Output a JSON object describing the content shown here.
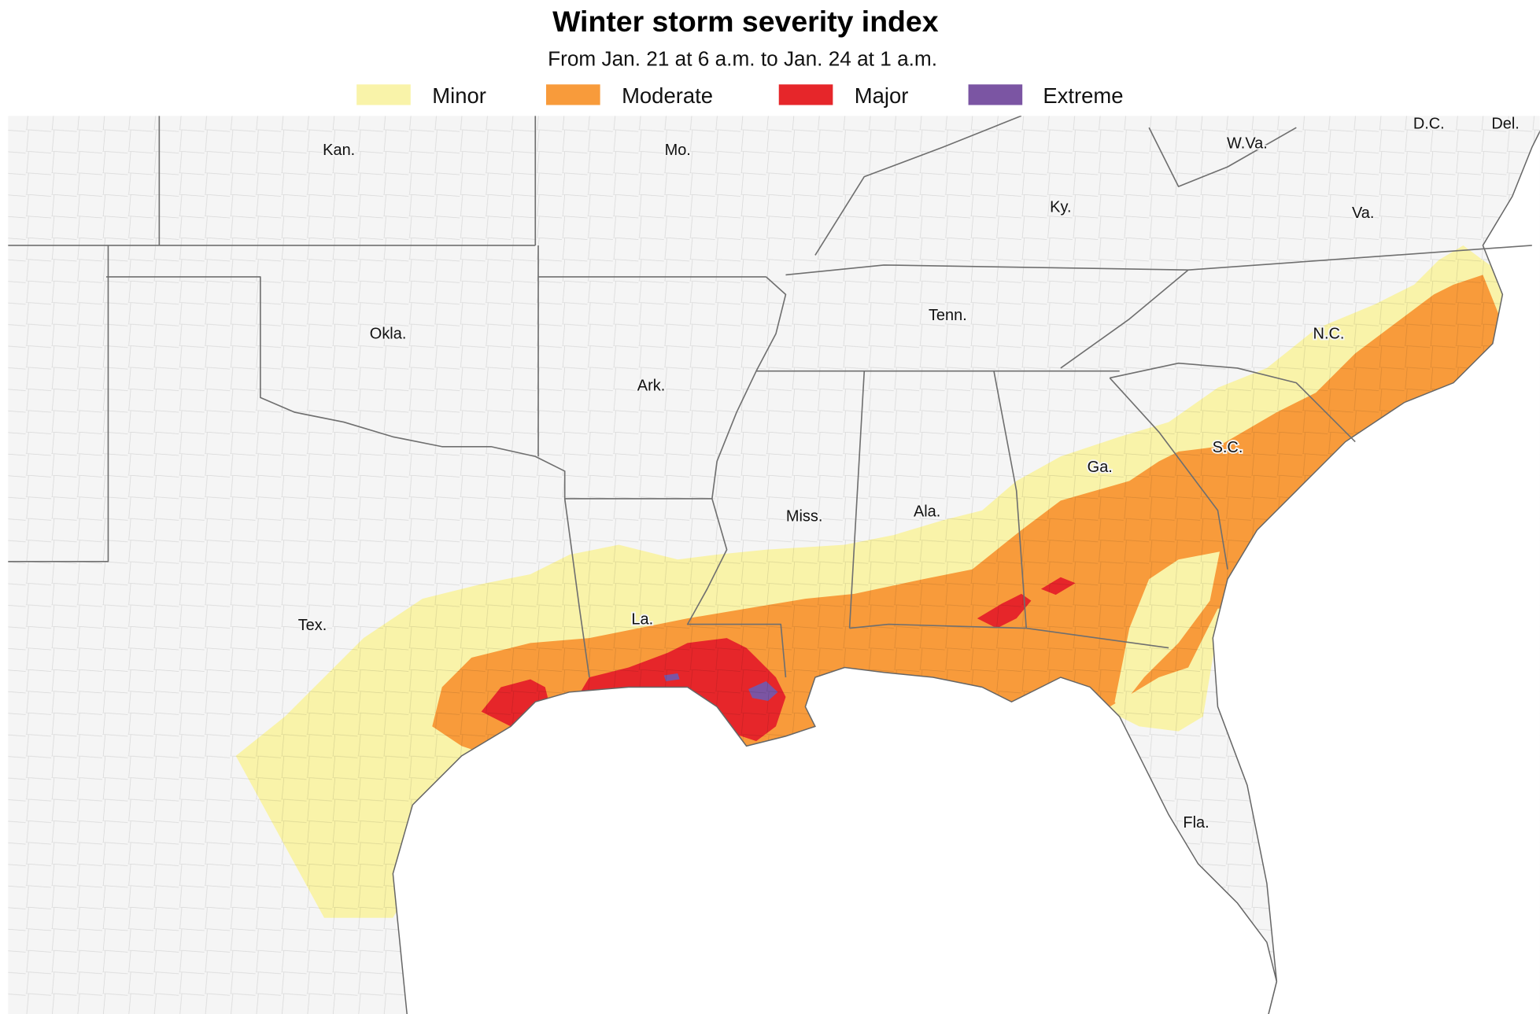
{
  "title": "Winter storm severity index",
  "subtitle": "From Jan. 21 at 6 a.m. to Jan. 24 at 1 a.m.",
  "legend": [
    {
      "label": "Minor",
      "color": "#f9f3a9"
    },
    {
      "label": "Moderate",
      "color": "#f89b3b"
    },
    {
      "label": "Major",
      "color": "#e6262a"
    },
    {
      "label": "Extreme",
      "color": "#7b55a3"
    }
  ],
  "colors": {
    "land": "#f5f5f5",
    "water": "#ffffff",
    "border": "#6f6f6f"
  },
  "state_labels": {
    "kan": "Kan.",
    "mo": "Mo.",
    "wva": "W.Va.",
    "dc": "D.C.",
    "del": "Del.",
    "ky": "Ky.",
    "va": "Va.",
    "okla": "Okla.",
    "tenn": "Tenn.",
    "nc": "N.C.",
    "ark": "Ark.",
    "sc": "S.C.",
    "ga": "Ga.",
    "miss": "Miss.",
    "ala": "Ala.",
    "la": "La.",
    "tex": "Tex.",
    "fla": "Fla."
  }
}
